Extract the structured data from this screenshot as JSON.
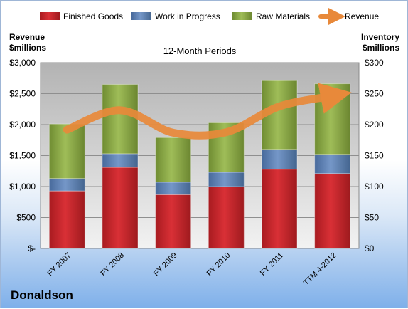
{
  "company": "Donaldson",
  "chart_data": {
    "type": "bar",
    "stacked": true,
    "title": "12-Month Periods",
    "categories": [
      "FY 2007",
      "FY 2008",
      "FY 2009",
      "FY 2010",
      "FY 2011",
      "TTM 4-2012"
    ],
    "y_left": {
      "label_line1": "Revenue",
      "label_line2": "$millions",
      "ylim": [
        0,
        3000
      ],
      "ticks": [
        {
          "value": 0,
          "label": "$-"
        },
        {
          "value": 500,
          "label": "$500"
        },
        {
          "value": 1000,
          "label": "$1,000"
        },
        {
          "value": 1500,
          "label": "$1,500"
        },
        {
          "value": 2000,
          "label": "$2,000"
        },
        {
          "value": 2500,
          "label": "$2,500"
        },
        {
          "value": 3000,
          "label": "$3,000"
        }
      ]
    },
    "y_right": {
      "label_line1": "Inventory",
      "label_line2": "$millions",
      "ylim": [
        0,
        300
      ],
      "ticks": [
        {
          "value": 0,
          "label": "$0"
        },
        {
          "value": 50,
          "label": "$50"
        },
        {
          "value": 100,
          "label": "$100"
        },
        {
          "value": 150,
          "label": "$150"
        },
        {
          "value": 200,
          "label": "$200"
        },
        {
          "value": 250,
          "label": "$250"
        },
        {
          "value": 300,
          "label": "$300"
        }
      ]
    },
    "series": [
      {
        "name": "Finished Goods",
        "axis": "right",
        "color": "#c8262c",
        "values": [
          93,
          131,
          87,
          100,
          128,
          121
        ]
      },
      {
        "name": "Work in Progress",
        "axis": "right",
        "color": "#5b80b4",
        "values": [
          20,
          22,
          20,
          23,
          32,
          31
        ]
      },
      {
        "name": "Raw Materials",
        "axis": "right",
        "color": "#8caa48",
        "values": [
          88,
          112,
          72,
          80,
          111,
          114
        ]
      },
      {
        "name": "Revenue",
        "axis": "left",
        "type": "line",
        "color": "#e8893a",
        "values": [
          1918,
          2232,
          1869,
          1877,
          2294,
          2460
        ]
      }
    ],
    "grid": true,
    "legend": "top"
  }
}
